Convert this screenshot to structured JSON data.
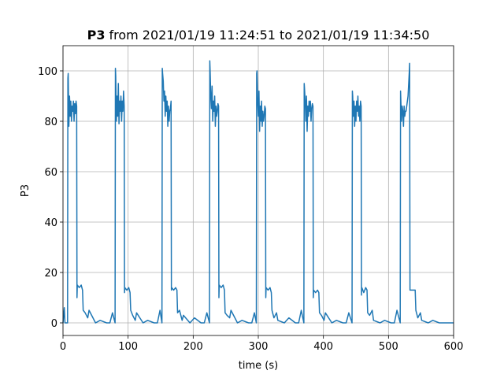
{
  "chart_data": {
    "type": "line",
    "title_bold": "P3",
    "title": "from 2021/01/19 11:24:51 to 2021/01/19 11:34:50",
    "xlabel": "time (s)",
    "ylabel": "P3",
    "xlim": [
      0,
      600
    ],
    "ylim": [
      -5,
      110
    ],
    "xticks": [
      0,
      100,
      200,
      300,
      400,
      500,
      600
    ],
    "yticks": [
      0,
      20,
      40,
      60,
      80,
      100
    ],
    "grid": true,
    "series": [
      {
        "color": "#1f77b4",
        "x": [
          0,
          2,
          3,
          7,
          7.5,
          8,
          9,
          10,
          11,
          12,
          13,
          14,
          15,
          16,
          17,
          18,
          19,
          20,
          21,
          21.5,
          22,
          25,
          28,
          30,
          31,
          34,
          38,
          40,
          50,
          57,
          67,
          72,
          76,
          80,
          80.5,
          81,
          82,
          83,
          84,
          85,
          86,
          87,
          88,
          89,
          90,
          91,
          92,
          93,
          94,
          94.5,
          95,
          98,
          101,
          103,
          104,
          107,
          111,
          113,
          123,
          130,
          140,
          145,
          149,
          152,
          152.5,
          153,
          154,
          155,
          156,
          157,
          158,
          159,
          160,
          161,
          162,
          163,
          164,
          165,
          166,
          166.5,
          167,
          170,
          173,
          175,
          176,
          179,
          183,
          185,
          195,
          202,
          212,
          217,
          221,
          225,
          225.5,
          226,
          227,
          228,
          229,
          230,
          231,
          232,
          233,
          234,
          235,
          236,
          237,
          238,
          239,
          239.5,
          240,
          243,
          246,
          248,
          249,
          252,
          256,
          258,
          268,
          275,
          285,
          290,
          294,
          297,
          297.5,
          298,
          299,
          300,
          301,
          302,
          303,
          304,
          305,
          306,
          307,
          308,
          309,
          310,
          311,
          311.5,
          312,
          315,
          318,
          320,
          321,
          324,
          328,
          330,
          340,
          347,
          357,
          362,
          366,
          370,
          370.5,
          371,
          372,
          373,
          374,
          375,
          376,
          377,
          378,
          379,
          380,
          381,
          382,
          383,
          384,
          384.5,
          385,
          388,
          391,
          393,
          394,
          397,
          401,
          403,
          413,
          420,
          430,
          435,
          439,
          444,
          444.5,
          445,
          446,
          447,
          448,
          449,
          450,
          451,
          452,
          453,
          454,
          455,
          456,
          457,
          458,
          458.5,
          459,
          462,
          465,
          467,
          468,
          471,
          475,
          477,
          487,
          494,
          504,
          509,
          513,
          518,
          518.5,
          519,
          520,
          521,
          522,
          523,
          524,
          525,
          526,
          527,
          528,
          529,
          530,
          531,
          532,
          532.5,
          533,
          536,
          539,
          541,
          542,
          545,
          549,
          551,
          561,
          568,
          578,
          583,
          600
        ],
        "values": [
          0,
          6,
          0,
          0,
          97,
          99,
          78,
          90,
          82,
          88,
          80,
          86,
          84,
          88,
          80,
          87,
          83,
          88,
          86,
          10,
          15,
          14,
          15,
          13,
          5,
          4,
          2,
          5,
          0,
          1,
          0,
          0,
          4,
          0,
          101,
          98,
          80,
          90,
          82,
          95,
          79,
          88,
          84,
          90,
          80,
          88,
          84,
          92,
          86,
          12,
          14,
          13,
          14,
          12,
          5,
          3,
          1,
          4,
          0,
          1,
          0,
          0,
          5,
          0,
          101,
          99,
          96,
          88,
          92,
          82,
          90,
          84,
          88,
          78,
          86,
          80,
          84,
          85,
          88,
          13,
          14,
          13,
          14,
          13,
          4,
          5,
          1,
          3,
          0,
          2,
          0,
          0,
          4,
          0,
          104,
          100,
          90,
          85,
          94,
          80,
          88,
          84,
          90,
          78,
          86,
          82,
          84,
          87,
          86,
          10,
          15,
          14,
          15,
          13,
          4,
          3,
          2,
          5,
          0,
          1,
          0,
          0,
          4,
          0,
          99,
          100,
          88,
          82,
          92,
          76,
          86,
          80,
          88,
          78,
          84,
          80,
          82,
          86,
          85,
          10,
          14,
          13,
          14,
          12,
          5,
          2,
          4,
          1,
          0,
          2,
          0,
          0,
          5,
          0,
          95,
          93,
          88,
          80,
          90,
          76,
          86,
          82,
          88,
          84,
          88,
          80,
          85,
          87,
          86,
          10,
          13,
          12,
          13,
          12,
          4,
          3,
          1,
          4,
          0,
          1,
          0,
          0,
          4,
          0,
          92,
          90,
          82,
          88,
          78,
          86,
          80,
          88,
          84,
          90,
          82,
          86,
          80,
          88,
          86,
          11,
          14,
          12,
          14,
          13,
          4,
          3,
          5,
          1,
          0,
          1,
          0,
          0,
          5,
          0,
          92,
          88,
          80,
          86,
          84,
          78,
          86,
          82,
          84,
          84,
          86,
          88,
          90,
          95,
          100,
          103,
          13,
          13,
          13,
          13,
          5,
          2,
          4,
          1,
          0,
          1,
          0,
          0,
          0
        ]
      }
    ]
  }
}
